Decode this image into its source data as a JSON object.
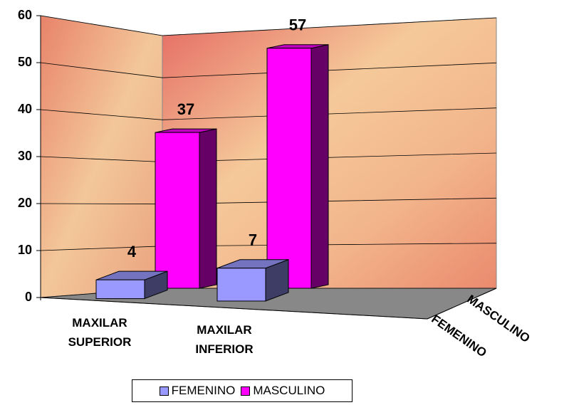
{
  "chart_data": {
    "type": "bar3d",
    "categories": [
      "MAXILAR SUPERIOR",
      "MAXILAR INFERIOR"
    ],
    "series": [
      {
        "name": "FEMENINO",
        "color": "#9999ff",
        "values": [
          4,
          7
        ]
      },
      {
        "name": "MASCULINO",
        "color": "#ff00ff",
        "values": [
          37,
          57
        ]
      }
    ],
    "ylim": [
      0,
      60
    ],
    "yticks": [
      0,
      10,
      20,
      30,
      40,
      50,
      60
    ],
    "grid": true,
    "legend": "bottom"
  }
}
